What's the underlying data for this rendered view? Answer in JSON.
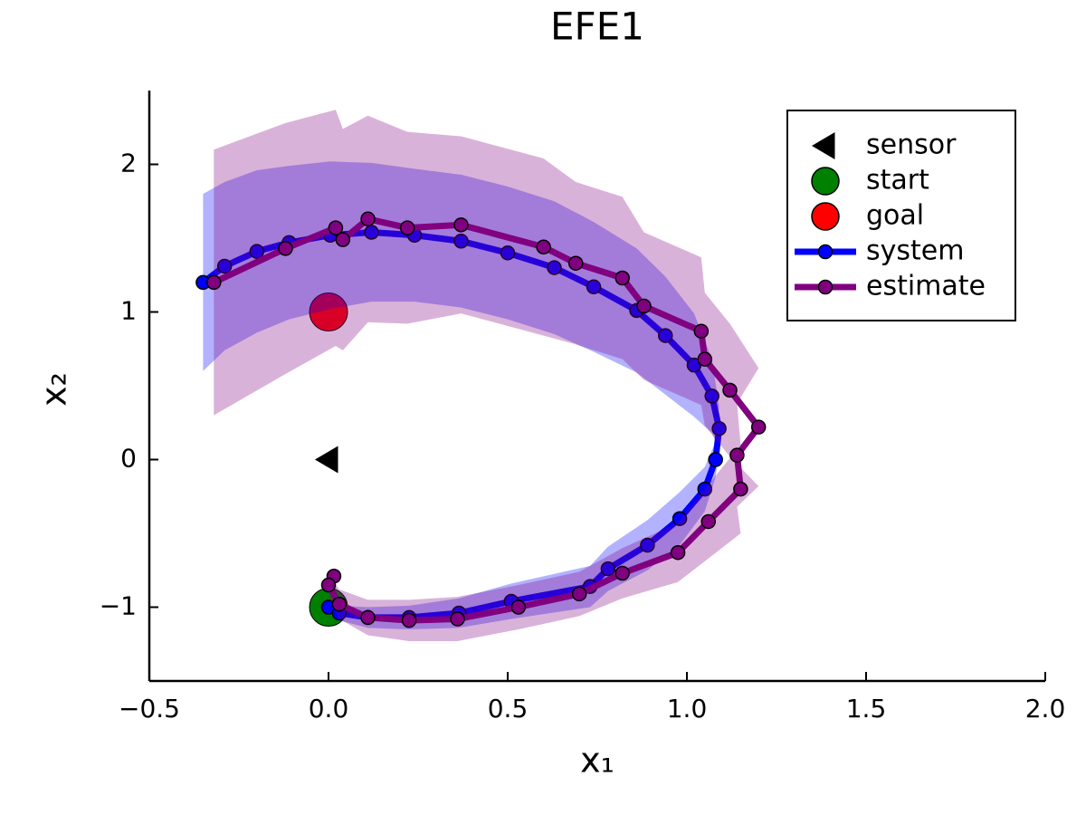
{
  "chart_data": {
    "type": "line",
    "title": "EFE1",
    "xlabel": "x₁",
    "ylabel": "x₂",
    "xlim": [
      -0.5,
      2.0
    ],
    "ylim": [
      -1.5,
      2.5
    ],
    "xticks": [
      {
        "value": -0.5,
        "label": "−0.5"
      },
      {
        "value": 0,
        "label": "0.0"
      },
      {
        "value": 0.5,
        "label": "0.5"
      },
      {
        "value": 1,
        "label": "1.0"
      },
      {
        "value": 1.5,
        "label": "1.5"
      },
      {
        "value": 2,
        "label": "2.0"
      }
    ],
    "yticks": [
      {
        "value": -1,
        "label": "−1"
      },
      0,
      1,
      2
    ],
    "grid": false,
    "legend": "top right",
    "series": [
      {
        "name": "sensor",
        "color": "#000000",
        "marker": "triangle-left",
        "x": [
          0
        ],
        "y": [
          0
        ]
      },
      {
        "name": "start",
        "color": "#008000",
        "marker": "circle",
        "x": [
          0
        ],
        "y": [
          -1
        ]
      },
      {
        "name": "goal",
        "color": "#ff0000",
        "marker": "circle",
        "x": [
          0
        ],
        "y": [
          1
        ]
      },
      {
        "name": "system",
        "color": "#0000ff",
        "marker": "circle",
        "line": true,
        "x": [
          0,
          0.03,
          0.11,
          0.225,
          0.364,
          0.51,
          0.73,
          0.78,
          0.89,
          0.98,
          1.05,
          1.08,
          1.09,
          1.07,
          1.02,
          0.94,
          0.86,
          0.74,
          0.63,
          0.5,
          0.37,
          0.24,
          0.12,
          0.005,
          -0.11,
          -0.2,
          -0.29,
          -0.35
        ],
        "y": [
          -1,
          -1.04,
          -1.07,
          -1.07,
          -1.04,
          -0.96,
          -0.86,
          -0.74,
          -0.58,
          -0.4,
          -0.2,
          0,
          0.21,
          0.43,
          0.64,
          0.84,
          1.01,
          1.17,
          1.3,
          1.4,
          1.48,
          1.52,
          1.54,
          1.52,
          1.47,
          1.41,
          1.31,
          1.2
        ],
        "ribbon": [
          0.03,
          0.05,
          0.07,
          0.08,
          0.1,
          0.12,
          0.14,
          0.15,
          0.17,
          0.18,
          0.15,
          0.12,
          0.15,
          0.25,
          0.35,
          0.4,
          0.42,
          0.44,
          0.45,
          0.45,
          0.45,
          0.45,
          0.47,
          0.5,
          0.52,
          0.55,
          0.57,
          0.6
        ]
      },
      {
        "name": "estimate",
        "color": "#800080",
        "marker": "circle",
        "line": true,
        "x": [
          0.015,
          0,
          0.03,
          0.11,
          0.225,
          0.36,
          0.53,
          0.7,
          0.82,
          0.975,
          1.06,
          1.15,
          1.14,
          1.2,
          1.12,
          1.05,
          1.04,
          0.88,
          0.82,
          0.69,
          0.6,
          0.37,
          0.22,
          0.11,
          0.04,
          0.02,
          -0.12,
          -0.32
        ],
        "y": [
          -0.79,
          -0.85,
          -0.98,
          -1.07,
          -1.09,
          -1.08,
          -1.0,
          -0.91,
          -0.77,
          -0.63,
          -0.42,
          -0.2,
          0.03,
          0.22,
          0.47,
          0.68,
          0.87,
          1.04,
          1.23,
          1.33,
          1.44,
          1.59,
          1.57,
          1.63,
          1.49,
          1.57,
          1.43,
          1.2
        ],
        "ribbon": [
          0.05,
          0.08,
          0.1,
          0.12,
          0.14,
          0.15,
          0.15,
          0.15,
          0.17,
          0.2,
          0.25,
          0.3,
          0.35,
          0.4,
          0.45,
          0.45,
          0.5,
          0.5,
          0.55,
          0.55,
          0.6,
          0.6,
          0.65,
          0.7,
          0.75,
          0.8,
          0.85,
          0.9
        ]
      }
    ]
  }
}
